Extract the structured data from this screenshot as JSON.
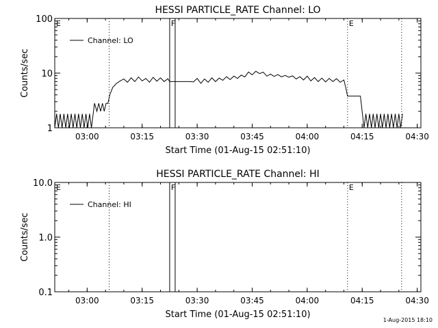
{
  "footer": {
    "timestamp": "1-Aug-2015 18:10"
  },
  "chart_data": [
    {
      "type": "line",
      "title": "HESSI PARTICLE_RATE Channel: LO",
      "xlabel": "Start Time (01-Aug-15 02:51:10)",
      "ylabel": "Counts/sec",
      "x_range": [
        "02:51:10",
        "04:31:00"
      ],
      "x_ticks": [
        "03:00",
        "03:15",
        "03:30",
        "03:45",
        "04:00",
        "04:15",
        "04:30"
      ],
      "y_scale": "log",
      "ylim": [
        1,
        100
      ],
      "y_ticks": [
        "1",
        "10",
        "100"
      ],
      "legend": {
        "placement": "top-left",
        "entries": [
          "Channel: LO"
        ]
      },
      "markers": [
        {
          "label": "E",
          "time": "02:51:10",
          "style": "solid"
        },
        {
          "label": "",
          "time": "03:06:00",
          "style": "dotted"
        },
        {
          "label": "F",
          "time": "03:22:30",
          "style": "solid"
        },
        {
          "label": "",
          "time": "03:24:00",
          "style": "solid"
        },
        {
          "label": "E",
          "time": "04:11:00",
          "style": "dotted"
        },
        {
          "label": "",
          "time": "04:25:45",
          "style": "dotted"
        }
      ],
      "series": [
        {
          "name": "Channel: LO",
          "points": [
            [
              "02:51:10",
              1.0
            ],
            [
              "02:51:40",
              1.8
            ],
            [
              "02:52:10",
              1.0
            ],
            [
              "02:52:40",
              1.8
            ],
            [
              "02:53:10",
              1.0
            ],
            [
              "02:53:40",
              1.8
            ],
            [
              "02:54:10",
              1.0
            ],
            [
              "02:54:40",
              1.8
            ],
            [
              "02:55:10",
              1.0
            ],
            [
              "02:55:40",
              1.8
            ],
            [
              "02:56:10",
              1.0
            ],
            [
              "02:56:40",
              1.8
            ],
            [
              "02:57:10",
              1.0
            ],
            [
              "02:57:40",
              1.8
            ],
            [
              "02:58:10",
              1.0
            ],
            [
              "02:58:40",
              1.8
            ],
            [
              "02:59:10",
              1.0
            ],
            [
              "02:59:40",
              1.8
            ],
            [
              "03:00:10",
              1.0
            ],
            [
              "03:00:40",
              1.8
            ],
            [
              "03:01:10",
              1.0
            ],
            [
              "03:02:00",
              2.8
            ],
            [
              "03:02:40",
              2.0
            ],
            [
              "03:03:10",
              2.8
            ],
            [
              "03:03:40",
              2.0
            ],
            [
              "03:04:10",
              2.8
            ],
            [
              "03:04:40",
              2.0
            ],
            [
              "03:05:10",
              2.8
            ],
            [
              "03:05:40",
              2.8
            ],
            [
              "03:06:10",
              4.0
            ],
            [
              "03:07:00",
              5.5
            ],
            [
              "03:08:00",
              6.5
            ],
            [
              "03:09:00",
              7.2
            ],
            [
              "03:10:00",
              7.8
            ],
            [
              "03:11:00",
              6.8
            ],
            [
              "03:12:00",
              8.2
            ],
            [
              "03:13:00",
              7.0
            ],
            [
              "03:14:00",
              8.5
            ],
            [
              "03:15:00",
              7.2
            ],
            [
              "03:16:00",
              8.0
            ],
            [
              "03:17:00",
              6.8
            ],
            [
              "03:18:00",
              8.4
            ],
            [
              "03:19:00",
              7.1
            ],
            [
              "03:20:00",
              8.2
            ],
            [
              "03:21:00",
              7.0
            ],
            [
              "03:22:00",
              7.9
            ],
            [
              "03:22:30",
              7.0
            ],
            [
              "03:24:00",
              7.0
            ],
            [
              "03:25:00",
              7.0
            ],
            [
              "03:26:00",
              7.0
            ],
            [
              "03:27:00",
              7.0
            ],
            [
              "03:28:00",
              7.0
            ],
            [
              "03:29:00",
              6.9
            ],
            [
              "03:30:00",
              8.0
            ],
            [
              "03:31:00",
              6.5
            ],
            [
              "03:32:00",
              7.8
            ],
            [
              "03:33:00",
              6.8
            ],
            [
              "03:34:00",
              8.2
            ],
            [
              "03:35:00",
              7.0
            ],
            [
              "03:36:00",
              8.1
            ],
            [
              "03:37:00",
              7.4
            ],
            [
              "03:38:00",
              8.6
            ],
            [
              "03:39:00",
              7.6
            ],
            [
              "03:40:00",
              8.8
            ],
            [
              "03:41:00",
              8.0
            ],
            [
              "03:42:00",
              9.2
            ],
            [
              "03:43:00",
              8.5
            ],
            [
              "03:44:00",
              10.5
            ],
            [
              "03:45:00",
              9.3
            ],
            [
              "03:46:00",
              10.8
            ],
            [
              "03:47:00",
              9.8
            ],
            [
              "03:48:00",
              10.4
            ],
            [
              "03:49:00",
              8.8
            ],
            [
              "03:50:00",
              9.6
            ],
            [
              "03:51:00",
              8.7
            ],
            [
              "03:52:00",
              9.4
            ],
            [
              "03:53:00",
              8.5
            ],
            [
              "03:54:00",
              9.1
            ],
            [
              "03:55:00",
              8.4
            ],
            [
              "03:56:00",
              8.9
            ],
            [
              "03:57:00",
              7.8
            ],
            [
              "03:58:00",
              8.6
            ],
            [
              "03:59:00",
              7.5
            ],
            [
              "04:00:00",
              8.8
            ],
            [
              "04:01:00",
              7.2
            ],
            [
              "04:02:00",
              8.3
            ],
            [
              "04:03:00",
              7.0
            ],
            [
              "04:04:00",
              8.1
            ],
            [
              "04:05:00",
              6.9
            ],
            [
              "04:06:00",
              8.0
            ],
            [
              "04:07:00",
              7.0
            ],
            [
              "04:08:00",
              7.9
            ],
            [
              "04:09:00",
              6.8
            ],
            [
              "04:10:00",
              7.5
            ],
            [
              "04:10:30",
              5.5
            ],
            [
              "04:11:00",
              3.8
            ],
            [
              "04:14:30",
              3.8
            ],
            [
              "04:15:30",
              1.0
            ],
            [
              "04:16:00",
              1.8
            ],
            [
              "04:16:30",
              1.0
            ],
            [
              "04:17:00",
              1.8
            ],
            [
              "04:17:30",
              1.0
            ],
            [
              "04:18:00",
              1.8
            ],
            [
              "04:18:30",
              1.0
            ],
            [
              "04:19:00",
              1.8
            ],
            [
              "04:19:30",
              1.0
            ],
            [
              "04:20:00",
              1.8
            ],
            [
              "04:20:30",
              1.0
            ],
            [
              "04:21:00",
              1.8
            ],
            [
              "04:21:30",
              1.0
            ],
            [
              "04:22:00",
              1.8
            ],
            [
              "04:22:30",
              1.0
            ],
            [
              "04:23:00",
              1.8
            ],
            [
              "04:23:30",
              1.0
            ],
            [
              "04:24:00",
              1.8
            ],
            [
              "04:24:30",
              1.0
            ],
            [
              "04:25:00",
              1.8
            ],
            [
              "04:25:30",
              1.0
            ],
            [
              "04:26:00",
              1.8
            ]
          ]
        }
      ]
    },
    {
      "type": "line",
      "title": "HESSI PARTICLE_RATE Channel: HI",
      "xlabel": "Start Time (01-Aug-15 02:51:10)",
      "ylabel": "Counts/sec",
      "x_range": [
        "02:51:10",
        "04:31:00"
      ],
      "x_ticks": [
        "03:00",
        "03:15",
        "03:30",
        "03:45",
        "04:00",
        "04:15",
        "04:30"
      ],
      "y_scale": "log",
      "ylim": [
        0.1,
        10
      ],
      "y_ticks": [
        "0.1",
        "1.0",
        "10.0"
      ],
      "legend": {
        "placement": "top-left",
        "entries": [
          "Channel: HI"
        ]
      },
      "markers": [
        {
          "label": "E",
          "time": "02:51:10",
          "style": "solid"
        },
        {
          "label": "",
          "time": "03:06:00",
          "style": "dotted"
        },
        {
          "label": "F",
          "time": "03:22:30",
          "style": "solid"
        },
        {
          "label": "",
          "time": "03:24:00",
          "style": "solid"
        },
        {
          "label": "E",
          "time": "04:11:00",
          "style": "dotted"
        },
        {
          "label": "",
          "time": "04:25:45",
          "style": "dotted"
        }
      ],
      "series": [
        {
          "name": "Channel: HI",
          "points": []
        }
      ]
    }
  ]
}
